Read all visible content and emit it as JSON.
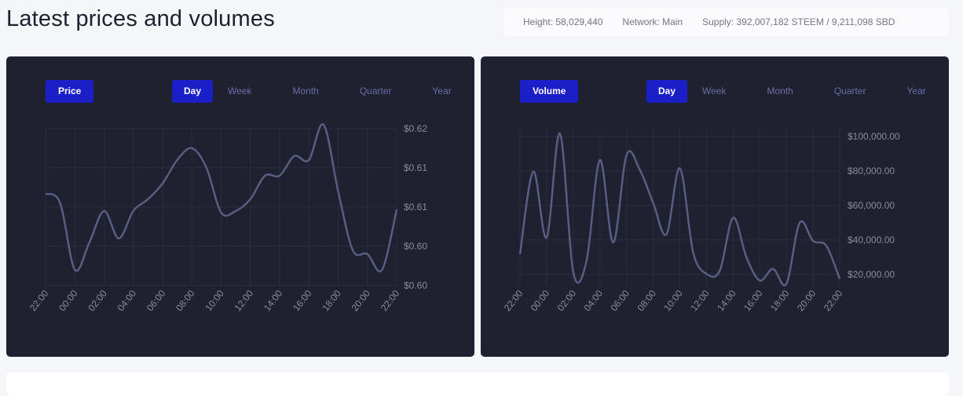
{
  "page": {
    "title": "Latest prices and volumes"
  },
  "stats": {
    "height": "Height: 58,029,440",
    "network": "Network: Main",
    "supply": "Supply: 392,007,182 STEEM / 9,211,098 SBD"
  },
  "panels": [
    {
      "metric_label": "Price",
      "range_tabs": [
        "Day",
        "Week",
        "Month",
        "Quarter",
        "Year"
      ],
      "active_range": "Day"
    },
    {
      "metric_label": "Volume",
      "range_tabs": [
        "Day",
        "Week",
        "Month",
        "Quarter",
        "Year"
      ],
      "active_range": "Day"
    }
  ],
  "colors": {
    "accent": "#1b1fc7",
    "panel_bg": "#1f2030",
    "line": "#5a5d80",
    "page_bg": "#f5f6fa"
  },
  "chart_data": [
    {
      "type": "line",
      "title": "",
      "xlabel": "",
      "ylabel": "",
      "x_ticks": [
        "22:00",
        "00:00",
        "02:00",
        "04:00",
        "06:00",
        "08:00",
        "10:00",
        "12:00",
        "14:00",
        "16:00",
        "18:00",
        "20:00",
        "22:00"
      ],
      "y_ticks": [
        "$0.62",
        "$0.61",
        "$0.61",
        "$0.60",
        "$0.60"
      ],
      "ylim": [
        0.6,
        0.62
      ],
      "grid": true,
      "series": [
        {
          "x": [
            "22:00",
            "23:00",
            "00:00",
            "01:00",
            "02:00",
            "03:00",
            "04:00",
            "05:00",
            "06:00",
            "07:00",
            "08:00",
            "09:00",
            "10:00",
            "11:00",
            "12:00",
            "13:00",
            "14:00",
            "15:00",
            "16:00",
            "17:00",
            "18:00",
            "19:00",
            "20:00",
            "21:00",
            "22:00"
          ],
          "values": [
            0.6117,
            0.6105,
            0.602,
            0.6055,
            0.6095,
            0.606,
            0.6095,
            0.611,
            0.613,
            0.616,
            0.6175,
            0.615,
            0.6093,
            0.6095,
            0.611,
            0.614,
            0.614,
            0.6165,
            0.616,
            0.6205,
            0.612,
            0.6045,
            0.604,
            0.602,
            0.6097
          ]
        }
      ]
    },
    {
      "type": "line",
      "title": "",
      "xlabel": "",
      "ylabel": "",
      "x_ticks": [
        "22:00",
        "00:00",
        "02:00",
        "04:00",
        "06:00",
        "08:00",
        "10:00",
        "12:00",
        "14:00",
        "16:00",
        "18:00",
        "20:00",
        "22:00"
      ],
      "y_ticks": [
        "$100,000.00",
        "$80,000.00",
        "$60,000.00",
        "$40,000.00",
        "$20,000.00"
      ],
      "ylim": [
        10000,
        105000
      ],
      "grid": true,
      "series": [
        {
          "x": [
            "22:00",
            "23:00",
            "00:00",
            "01:00",
            "02:00",
            "03:00",
            "04:00",
            "05:00",
            "06:00",
            "07:00",
            "08:00",
            "09:00",
            "10:00",
            "11:00",
            "12:00",
            "13:00",
            "14:00",
            "15:00",
            "16:00",
            "17:00",
            "18:00",
            "19:00",
            "20:00",
            "21:00",
            "22:00"
          ],
          "values": [
            29000,
            79000,
            39000,
            102000,
            18000,
            25000,
            86000,
            36000,
            89000,
            80000,
            60000,
            41000,
            81000,
            30000,
            17000,
            19000,
            51000,
            27000,
            13000,
            20000,
            11000,
            48000,
            37000,
            34000,
            14000
          ]
        }
      ]
    }
  ]
}
